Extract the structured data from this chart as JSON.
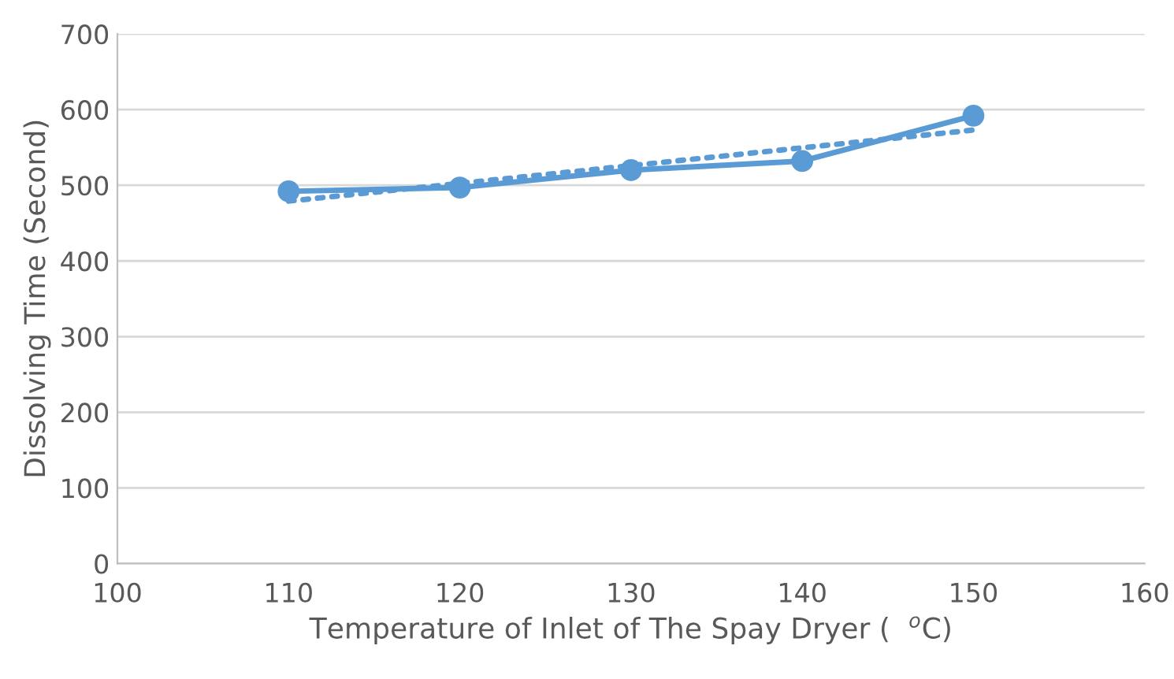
{
  "chart_data": {
    "type": "line",
    "xlabel": "Temperature of Inlet of The Spay Dryer (  $^{o}$C)",
    "ylabel": "Dissolving Time (Second)",
    "x": [
      110,
      120,
      130,
      140,
      150
    ],
    "series": [
      {
        "color": "#5b9bd5",
        "values": [
          492,
          497,
          520,
          532,
          592
        ],
        "marker": "circle",
        "line_style": "solid"
      },
      {
        "type": "line",
        "color": "#5b9bd5",
        "x": [
          110,
          150
        ],
        "values": [
          479,
          573
        ],
        "marker": "none",
        "line_style": "dotted"
      }
    ],
    "xlim": [
      100,
      160
    ],
    "xticks": [
      100,
      110,
      120,
      130,
      140,
      150,
      160
    ],
    "ylim": [
      0,
      700
    ],
    "yticks": [
      0,
      100,
      200,
      300,
      400,
      500,
      600,
      700
    ],
    "grid": "y",
    "legend": false
  }
}
